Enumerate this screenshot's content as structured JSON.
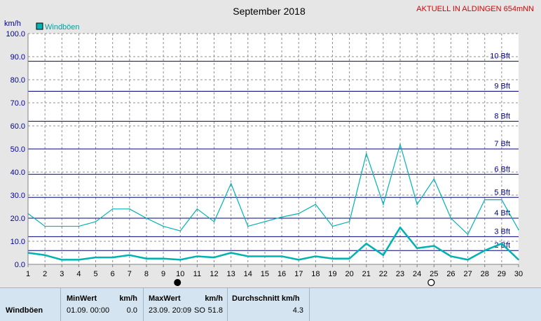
{
  "header": {
    "title": "September 2018",
    "station": "AKTUELL IN ALDINGEN 654mNN"
  },
  "colors": {
    "background": "#e6e6e6",
    "plot_background": "#ffffff",
    "series": "#00b3b3",
    "bft_line": "#000080",
    "bft_label": "#000080",
    "station_text": "#e00000",
    "axis_text": "#0000a0",
    "stats_background": "#d4e4f0"
  },
  "moon_icons": [
    {
      "day": 10,
      "phase": "new-moon-icon"
    },
    {
      "day": 25,
      "phase": "full-moon-icon"
    }
  ],
  "chart_data": {
    "type": "line",
    "title": "September 2018",
    "ylabel": "km/h",
    "ylim": [
      0,
      100
    ],
    "xlim": [
      1,
      30
    ],
    "yticks": [
      "0.0",
      "10.0",
      "20.0",
      "30.0",
      "40.0",
      "50.0",
      "60.0",
      "70.0",
      "80.0",
      "90.0",
      "100.0"
    ],
    "x": [
      1,
      2,
      3,
      4,
      5,
      6,
      7,
      8,
      9,
      10,
      11,
      12,
      13,
      14,
      15,
      16,
      17,
      18,
      19,
      20,
      21,
      22,
      23,
      24,
      25,
      26,
      27,
      28,
      29,
      30
    ],
    "legend": {
      "label": "Windböen",
      "placement": "top-left"
    },
    "grid": true,
    "series": [
      {
        "name": "Windböen",
        "role": "max",
        "values": [
          22,
          16.5,
          16.5,
          16.5,
          18.5,
          24,
          24,
          20,
          16.5,
          14.5,
          24,
          18.5,
          35,
          16.5,
          18.5,
          20.5,
          22,
          26,
          16.5,
          18.5,
          48,
          26,
          52,
          26,
          37,
          20,
          13,
          28,
          28,
          15
        ]
      },
      {
        "role": "avg",
        "values": [
          5,
          4,
          2,
          2,
          3,
          3,
          4,
          2.5,
          2.5,
          2,
          3.5,
          3,
          5,
          3.5,
          3.5,
          3.5,
          2,
          3.5,
          2.5,
          2.5,
          9,
          4,
          16,
          7,
          8,
          3.5,
          2,
          6,
          9,
          2
        ]
      }
    ],
    "bft_lines": [
      {
        "label": "2 Bft",
        "value": 6
      },
      {
        "label": "3 Bft",
        "value": 12
      },
      {
        "label": "4 Bft",
        "value": 20
      },
      {
        "label": "5 Bft",
        "value": 29
      },
      {
        "label": "6 Bft",
        "value": 39
      },
      {
        "label": "7 Bft",
        "value": 50
      },
      {
        "label": "8 Bft",
        "value": 62
      },
      {
        "label": "9 Bft",
        "value": 75
      },
      {
        "label": "10 Bft",
        "value": 88
      }
    ]
  },
  "stats": {
    "minwert_header": "MinWert",
    "unit_header": "km/h",
    "maxwert_header": "MaxWert",
    "durchschnitt_header": "Durchschnitt km/h",
    "row_label": "Windböen",
    "min_date": "01.09.  00:00",
    "min_value": "0.0",
    "max_date": "23.09.  20:09",
    "max_dir": "SO",
    "max_value": "51.8",
    "avg_value": "4.3"
  }
}
